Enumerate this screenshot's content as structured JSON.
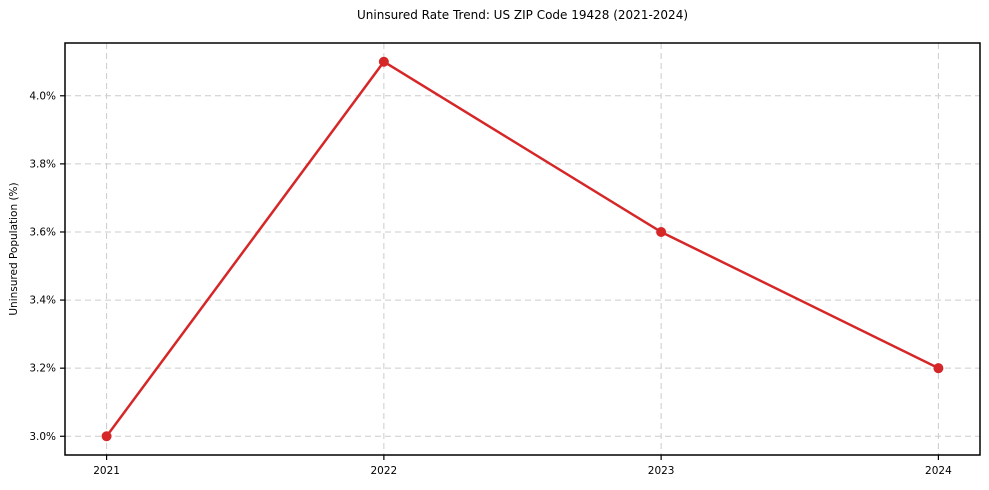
{
  "figure": {
    "background": "#ffffff"
  },
  "chart_data": {
    "type": "line",
    "title": "Uninsured Rate Trend: US ZIP Code 19428 (2021-2024)",
    "xlabel": "",
    "ylabel": "Uninsured Population (%)",
    "categories": [
      "2021",
      "2022",
      "2023",
      "2024"
    ],
    "values": [
      3.0,
      4.1,
      3.6,
      3.2
    ],
    "ytick_values": [
      3.0,
      3.2,
      3.4,
      3.6,
      3.8,
      4.0
    ],
    "ytick_labels": [
      "3.0%",
      "3.2%",
      "3.4%",
      "3.6%",
      "3.8%",
      "4.0%"
    ],
    "ylim": [
      2.945,
      4.155
    ],
    "grid": "dashed",
    "legend": "none",
    "line_color": "#d62728",
    "marker": "circle",
    "grid_color": "#cccccc",
    "axis_color": "#000000",
    "text_color": "#000000"
  }
}
